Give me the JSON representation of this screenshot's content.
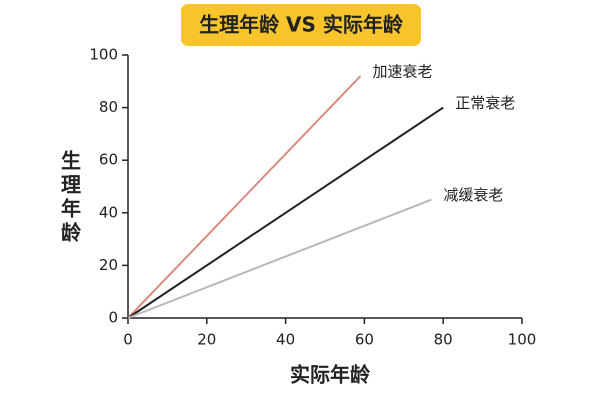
{
  "chart_data": {
    "type": "line",
    "title": "生理年龄 VS 实际年龄",
    "x_label": "实际年龄",
    "y_label": "生理年龄",
    "xlim": [
      0,
      100
    ],
    "xticks": [
      0,
      20,
      40,
      60,
      80,
      100
    ],
    "ylim": [
      0,
      100
    ],
    "yticks": [
      0,
      20,
      40,
      60,
      80,
      100
    ],
    "series": [
      {
        "name": "加速衰老",
        "color": "#d98b80",
        "label_color": "#d46a5f",
        "x": [
          0,
          59
        ],
        "values": [
          0,
          92
        ]
      },
      {
        "name": "正常衰老",
        "color": "#222222",
        "label_color": "#333333",
        "x": [
          0,
          80
        ],
        "values": [
          0,
          80
        ]
      },
      {
        "name": "减缓衰老",
        "color": "#b8b8b8",
        "label_color": "#7aa05a",
        "x": [
          0,
          77
        ],
        "values": [
          0,
          45
        ]
      }
    ]
  }
}
